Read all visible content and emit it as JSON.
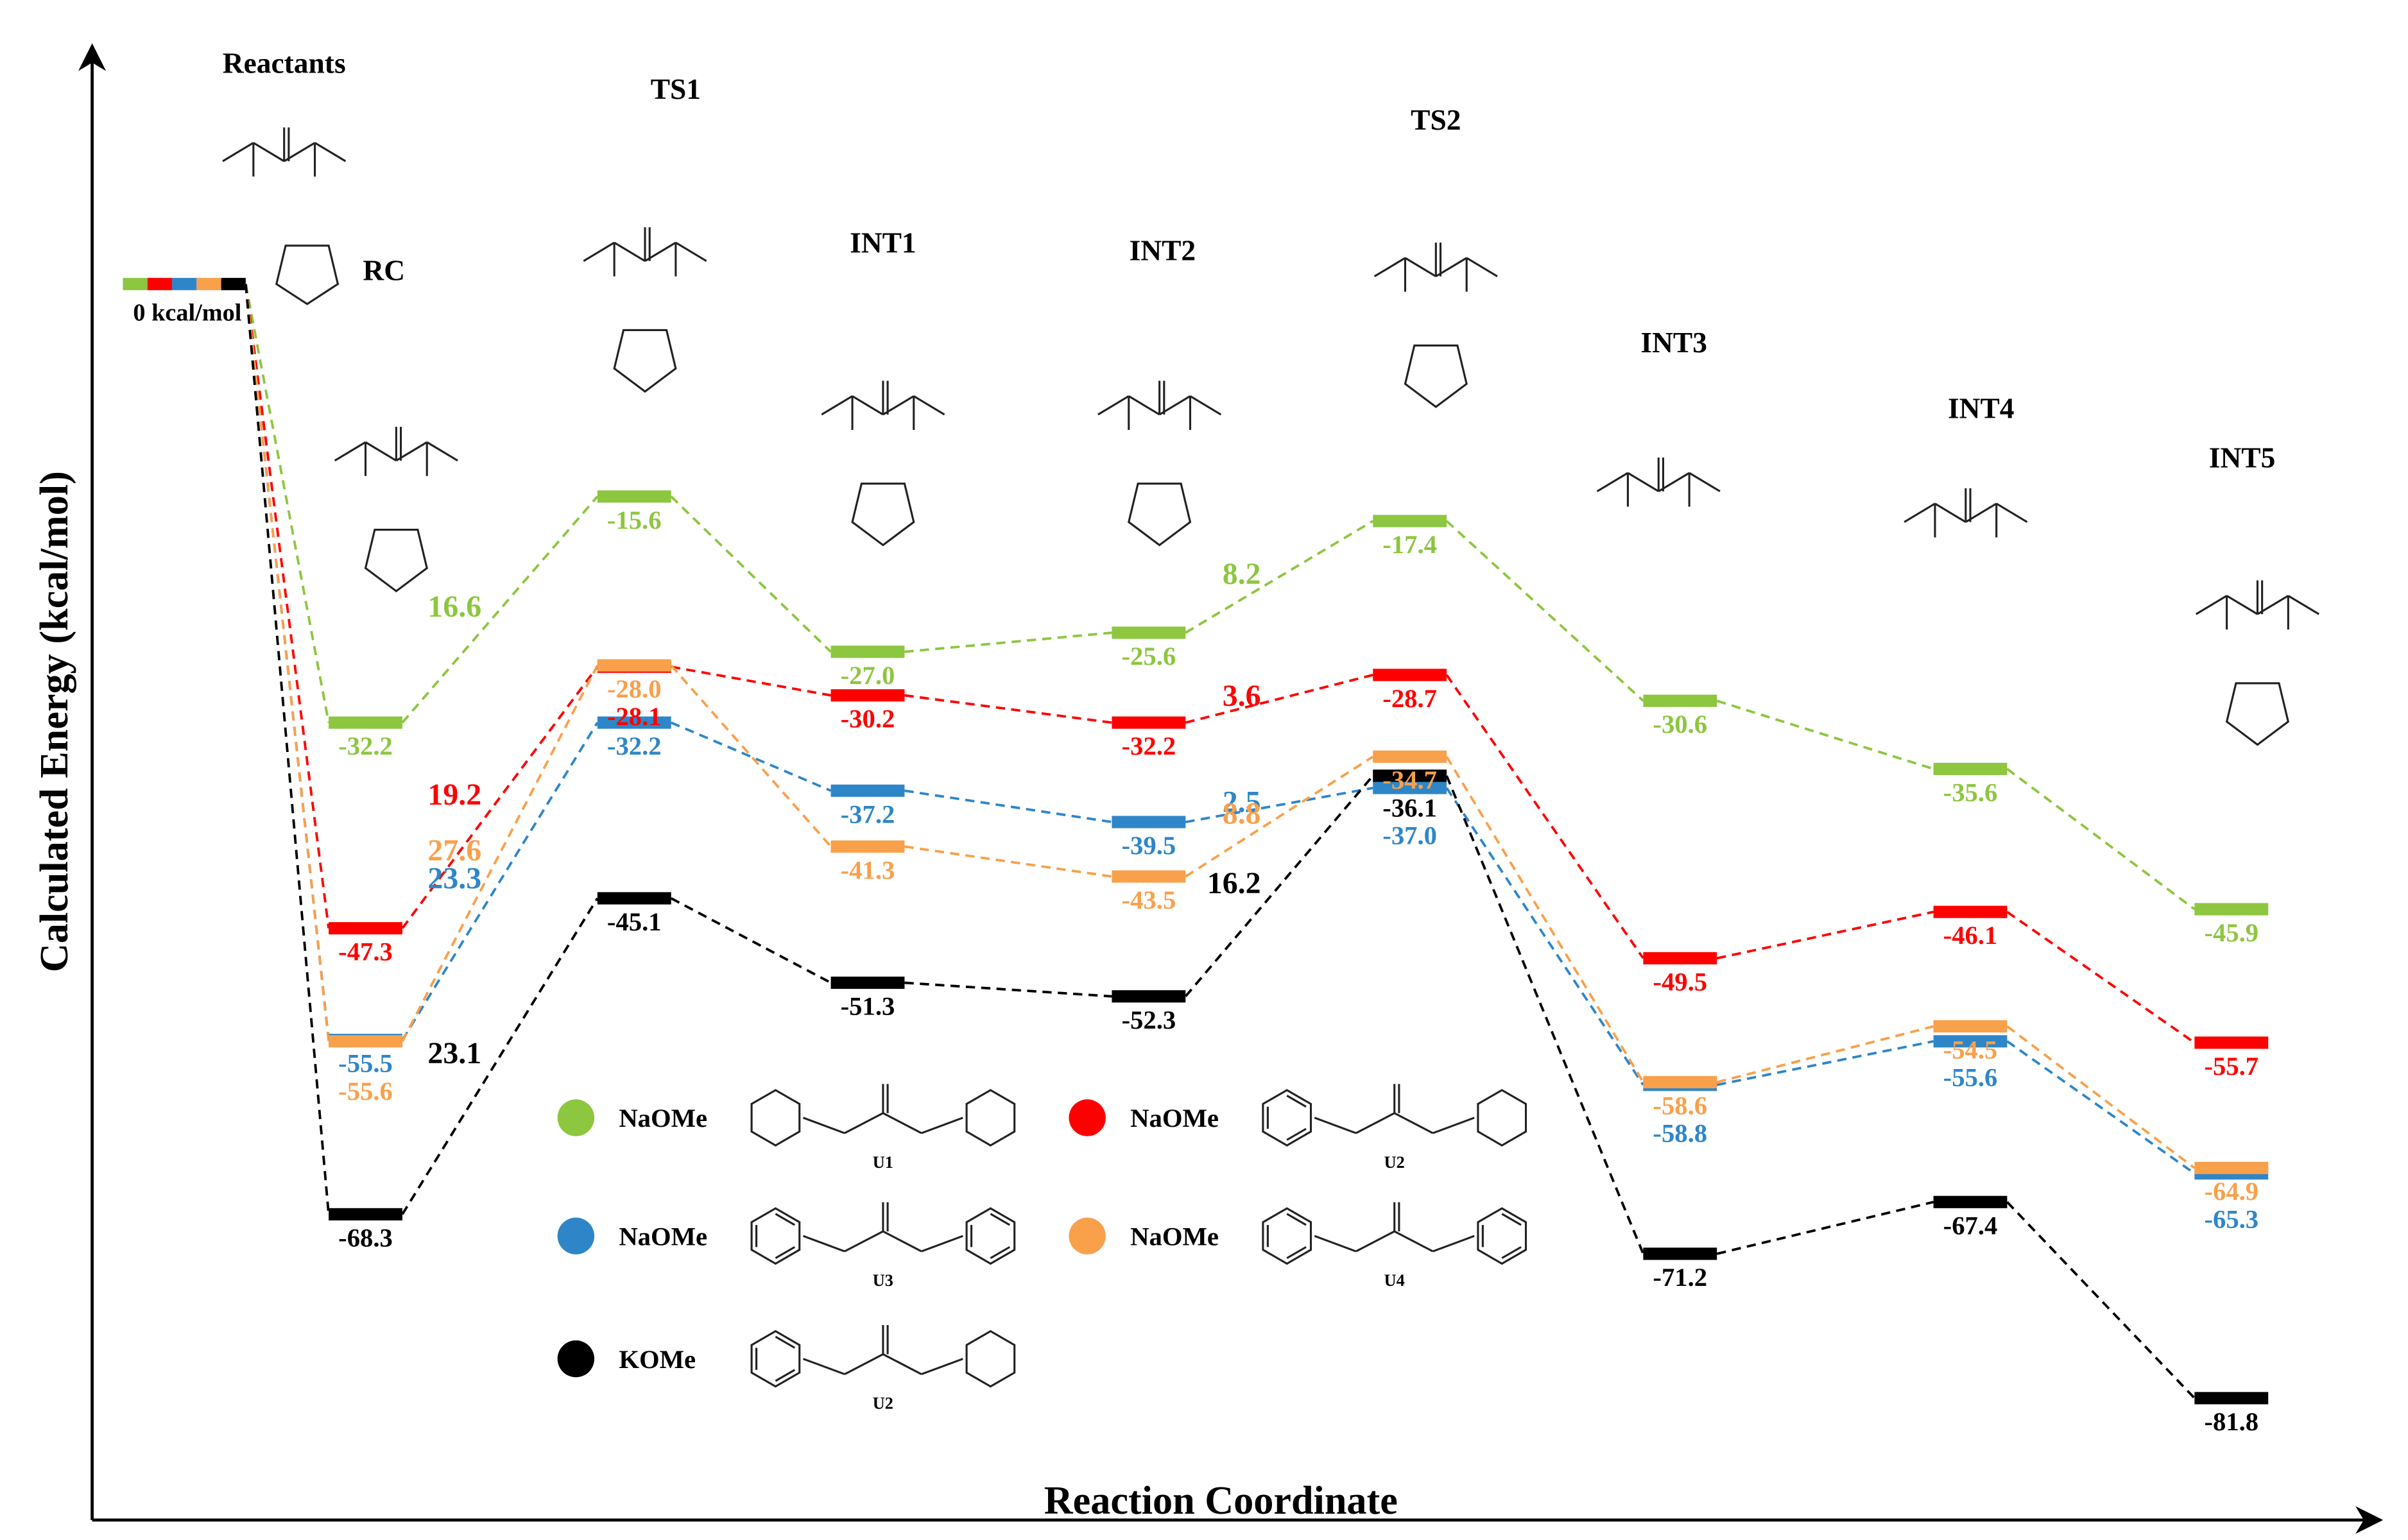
{
  "chart_data": {
    "type": "energy-profile",
    "y_label": "Calculated Energy (kcal/mol)",
    "x_label": "Reaction Coordinate",
    "categories": [
      "Reactants",
      "RC",
      "TS1",
      "INT1",
      "INT2",
      "TS2",
      "INT3",
      "INT4",
      "INT5"
    ],
    "origin_label": "0 kcal/mol",
    "ylim": [
      -85,
      0
    ],
    "series": [
      {
        "name": "NaOMe",
        "ligand": "U1",
        "color": "#8dc63f",
        "values": [
          0,
          -32.2,
          -15.6,
          -27.0,
          -25.6,
          -17.4,
          -30.6,
          -35.6,
          -45.9
        ],
        "value_labels": [
          null,
          "-32.2",
          "-15.6",
          "-27.0",
          "-25.6",
          "-17.4",
          "-30.6",
          "-35.6",
          "-45.9"
        ],
        "barriers": [
          16.6,
          8.2
        ]
      },
      {
        "name": "NaOMe",
        "ligand": "U2",
        "color": "#ff0000",
        "values": [
          0,
          -47.3,
          -28.1,
          -30.2,
          -32.2,
          -28.7,
          -49.5,
          -46.1,
          -55.7
        ],
        "value_labels": [
          null,
          "-47.3",
          "-28.1",
          "-30.2",
          "-32.2",
          "-28.7",
          "-49.5",
          "-46.1",
          "-55.7"
        ],
        "barriers": [
          19.2,
          3.6
        ]
      },
      {
        "name": "NaOMe",
        "ligand": "U3",
        "color": "#2e86c8",
        "values": [
          0,
          -55.5,
          -32.2,
          -37.2,
          -39.5,
          -37.0,
          -58.8,
          -55.6,
          -65.3
        ],
        "value_labels": [
          null,
          "-55.5",
          "-32.2",
          "-37.2",
          "-39.5",
          "-37.0",
          "-58.8",
          "-55.6",
          "-65.3"
        ],
        "barriers": [
          23.3,
          2.5
        ]
      },
      {
        "name": "NaOMe",
        "ligand": "U4",
        "color": "#f9a04b",
        "values": [
          0,
          -55.6,
          -28.0,
          -41.3,
          -43.5,
          -34.7,
          -58.6,
          -54.5,
          -64.9
        ],
        "value_labels": [
          null,
          "-55.6",
          "-28.0",
          "-41.3",
          "-43.5",
          "-34.7",
          "-58.6",
          "-54.5",
          "-64.9"
        ],
        "barriers": [
          27.6,
          8.8
        ]
      },
      {
        "name": "KOMe",
        "ligand": "U2",
        "color": "#000000",
        "values": [
          0,
          -68.3,
          -45.1,
          -51.3,
          -52.3,
          -36.1,
          -71.2,
          -67.4,
          -81.8
        ],
        "value_labels": [
          null,
          "-68.3",
          "-45.1",
          "-51.3",
          "-52.3",
          "-36.1",
          "-71.2",
          "-67.4",
          "-81.8"
        ],
        "barriers": [
          23.1,
          16.2
        ]
      }
    ]
  }
}
